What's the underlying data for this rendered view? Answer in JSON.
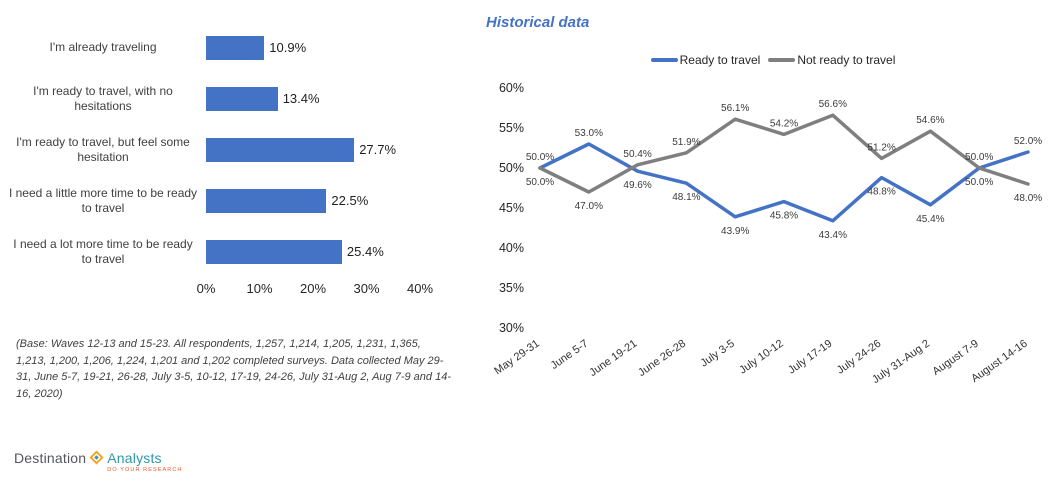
{
  "chart_data": [
    {
      "type": "bar",
      "orientation": "horizontal",
      "categories": [
        "I'm already traveling",
        "I'm ready to travel, with no hesitations",
        "I'm ready to travel, but feel some hesitation",
        "I need a little more time to be ready to travel",
        "I need a lot more time to be ready to travel"
      ],
      "values": [
        10.9,
        13.4,
        27.7,
        22.5,
        25.4
      ],
      "value_labels": [
        "10.9%",
        "13.4%",
        "27.7%",
        "22.5%",
        "25.4%"
      ],
      "xlim": [
        0,
        40
      ],
      "x_ticks": [
        "0%",
        "10%",
        "20%",
        "30%",
        "40%"
      ],
      "bar_color": "#4472C4",
      "grid": false
    },
    {
      "type": "line",
      "title": "Historical data",
      "title_color": "#4472C4",
      "categories": [
        "May 29-31",
        "June 5-7",
        "June 19-21",
        "June 26-28",
        "July 3-5",
        "July 10-12",
        "July 17-19",
        "July 24-26",
        "July 31-Aug 2",
        "August 7-9",
        "August 14-16"
      ],
      "series": [
        {
          "name": "Ready to travel",
          "color": "#4472C4",
          "values": [
            50.0,
            53.0,
            49.6,
            48.1,
            43.9,
            45.8,
            43.4,
            48.8,
            45.4,
            50.0,
            52.0
          ],
          "labels": [
            "50.0%",
            "53.0%",
            "49.6%",
            "48.1%",
            "43.9%",
            "45.8%",
            "43.4%",
            "48.8%",
            "45.4%",
            "50.0%",
            "52.0%"
          ]
        },
        {
          "name": "Not ready to travel",
          "color": "#7F7F7F",
          "values": [
            50.0,
            47.0,
            50.4,
            51.9,
            56.1,
            54.2,
            56.6,
            51.2,
            54.6,
            50.0,
            48.0
          ],
          "labels": [
            "50.0%",
            "47.0%",
            "50.4%",
            "51.9%",
            "56.1%",
            "54.2%",
            "56.6%",
            "51.2%",
            "54.6%",
            "50.0%",
            "48.0%"
          ]
        }
      ],
      "ylim": [
        30,
        60
      ],
      "y_ticks": [
        "60%",
        "55%",
        "50%",
        "45%",
        "40%",
        "35%",
        "30%"
      ],
      "legend_position": "top",
      "grid": false
    }
  ],
  "footnote": "(Base: Waves 12-13 and 15-23. All respondents, 1,257, 1,214, 1,205, 1,231, 1,365, 1,213, 1,200, 1,206, 1,224, 1,201 and 1,202 completed surveys. Data collected May 29-31, June 5-7, 19-21, 26-28, July 3-5, 10-12, 17-19, 24-26, July 31-Aug 2, Aug 7-9 and 14-16, 2020)",
  "logo": {
    "word1": "Destination",
    "word2": "Analysts",
    "tagline": "DO YOUR RESEARCH",
    "diamond_color": "#F8A21C",
    "accent_color": "#2D9AA5"
  }
}
